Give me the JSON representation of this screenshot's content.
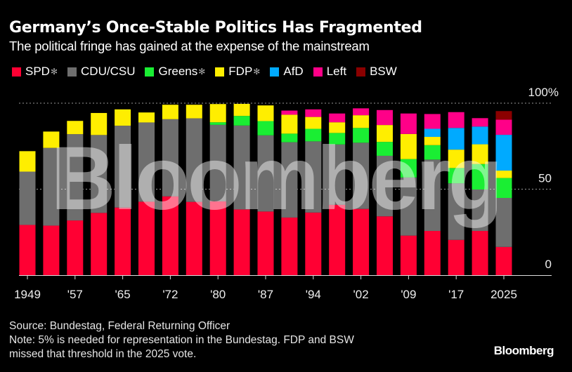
{
  "header": {
    "title": "Germany’s Once-Stable Politics Has Fragmented",
    "subtitle": "The political fringe has gained at the expense of the mainstream"
  },
  "legend": [
    {
      "label": "SPD",
      "star": "✻",
      "color": "#ff0033"
    },
    {
      "label": "CDU/CSU",
      "star": "",
      "color": "#6e6e6e"
    },
    {
      "label": "Greens",
      "star": "✻",
      "color": "#1aee33"
    },
    {
      "label": "FDP",
      "star": "✻",
      "color": "#ffee00"
    },
    {
      "label": "AfD",
      "star": "",
      "color": "#00aaff"
    },
    {
      "label": "Left",
      "star": "",
      "color": "#ff0088"
    },
    {
      "label": "BSW",
      "star": "",
      "color": "#8b0000"
    }
  ],
  "chart_data": {
    "type": "bar",
    "stacked": true,
    "title": "Germany’s Once-Stable Politics Has Fragmented",
    "subtitle": "The political fringe has gained at the expense of the mainstream",
    "xlabel": "",
    "ylabel": "",
    "ylim": [
      0,
      100
    ],
    "y_ticks": [
      {
        "value": 0,
        "label": "0"
      },
      {
        "value": 50,
        "label": "50"
      },
      {
        "value": 100,
        "label": "100%"
      }
    ],
    "grid": true,
    "legend_position": "top-left",
    "categories": [
      "1949",
      "1953",
      "1957",
      "1961",
      "1965",
      "1969",
      "1972",
      "1976",
      "1980",
      "1983",
      "1987",
      "1990",
      "1994",
      "1998",
      "2002",
      "2005",
      "2009",
      "2013",
      "2017",
      "2021",
      "2025"
    ],
    "x_tick_labels": [
      {
        "index": 0,
        "label": "1949"
      },
      {
        "index": 2,
        "label": "'57"
      },
      {
        "index": 4,
        "label": "'65"
      },
      {
        "index": 6,
        "label": "'72"
      },
      {
        "index": 8,
        "label": "'80"
      },
      {
        "index": 10,
        "label": "'87"
      },
      {
        "index": 12,
        "label": "'94"
      },
      {
        "index": 14,
        "label": "'02"
      },
      {
        "index": 16,
        "label": "'09"
      },
      {
        "index": 18,
        "label": "'17"
      },
      {
        "index": 20,
        "label": "2025"
      }
    ],
    "series": [
      {
        "name": "SPD",
        "color": "#ff0033",
        "values": [
          29.2,
          28.8,
          31.8,
          36.2,
          39.3,
          42.7,
          45.8,
          42.6,
          42.9,
          38.2,
          37.0,
          33.5,
          36.4,
          40.9,
          38.5,
          34.2,
          23.0,
          25.7,
          20.5,
          25.7,
          16.4
        ]
      },
      {
        "name": "CDU/CSU",
        "color": "#6e6e6e",
        "values": [
          31.0,
          45.2,
          50.2,
          45.3,
          47.6,
          46.1,
          44.9,
          48.6,
          44.5,
          48.8,
          44.3,
          43.8,
          41.4,
          35.1,
          38.5,
          35.2,
          33.8,
          41.5,
          32.9,
          24.1,
          28.5
        ]
      },
      {
        "name": "Greens",
        "color": "#1aee33",
        "values": [
          0,
          0,
          0,
          0,
          0,
          0,
          0,
          0,
          1.5,
          5.6,
          8.3,
          5.0,
          7.3,
          6.7,
          8.6,
          8.1,
          10.7,
          8.4,
          8.9,
          14.8,
          11.6
        ]
      },
      {
        "name": "FDP",
        "color": "#ffee00",
        "values": [
          11.9,
          9.5,
          7.7,
          12.8,
          9.5,
          5.8,
          8.4,
          7.9,
          10.6,
          7.0,
          9.1,
          11.0,
          6.9,
          6.2,
          7.4,
          9.8,
          14.6,
          4.8,
          10.7,
          11.5,
          4.3
        ]
      },
      {
        "name": "AfD",
        "color": "#00aaff",
        "values": [
          0,
          0,
          0,
          0,
          0,
          0,
          0,
          0,
          0,
          0,
          0,
          0,
          0,
          0,
          0,
          0,
          0,
          4.7,
          12.6,
          10.3,
          20.8
        ]
      },
      {
        "name": "Left",
        "color": "#ff0088",
        "values": [
          0,
          0,
          0,
          0,
          0,
          0,
          0,
          0,
          0,
          0,
          0,
          2.4,
          4.4,
          5.1,
          4.0,
          8.7,
          11.9,
          8.6,
          9.2,
          4.9,
          8.8
        ]
      },
      {
        "name": "BSW",
        "color": "#8b0000",
        "values": [
          0,
          0,
          0,
          0,
          0,
          0,
          0,
          0,
          0,
          0,
          0,
          0,
          0,
          0,
          0,
          0,
          0,
          0,
          0,
          0,
          5.0
        ]
      }
    ],
    "watermark": "Bloomberg"
  },
  "footer": {
    "source": "Source: Bundestag, Federal Returning Officer",
    "note_line1": "Note: 5% is needed for representation in the Bundestag. FDP and BSW",
    "note_line2": "missed that threshold in the 2025 vote.",
    "brand": "Bloomberg"
  }
}
